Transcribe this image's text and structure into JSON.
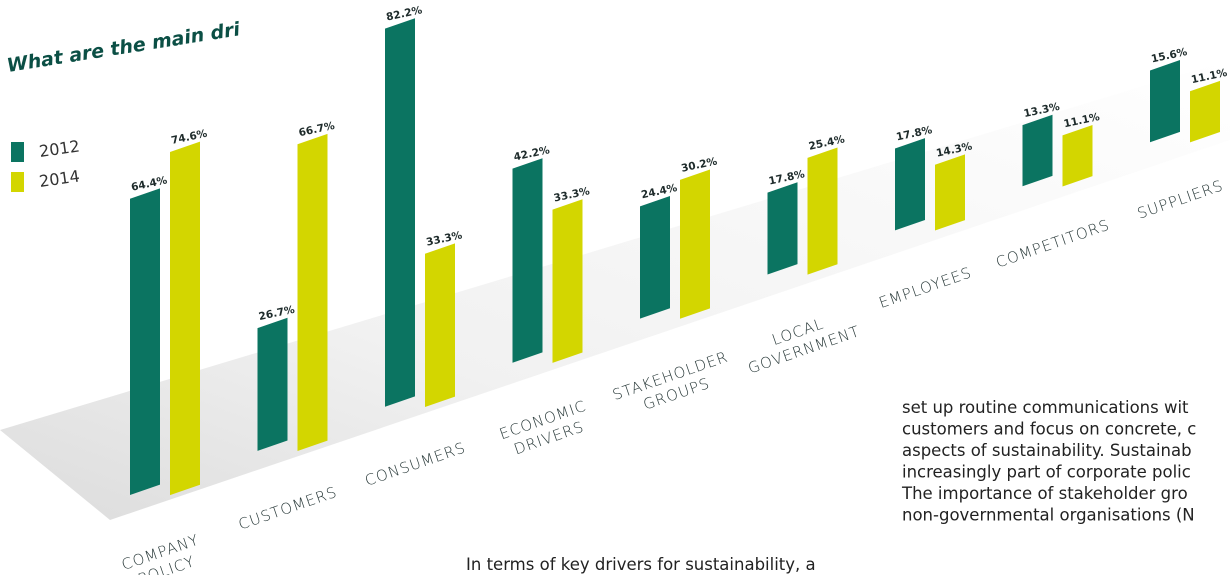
{
  "chart_data": {
    "type": "bar",
    "title": "What are the main dri",
    "categories": [
      [
        "COMPANY",
        "POLICY"
      ],
      [
        "CUSTOMERS"
      ],
      [
        "CONSUMERS"
      ],
      [
        "ECONOMIC",
        "DRIVERS"
      ],
      [
        "STAKEHOLDER",
        "GROUPS"
      ],
      [
        "LOCAL",
        "GOVERNMENT"
      ],
      [
        "EMPLOYEES"
      ],
      [
        "COMPETITORS"
      ],
      [
        "SUPPLIERS"
      ]
    ],
    "series": [
      {
        "name": "2012",
        "color": "#0b7461",
        "values": [
          64.4,
          26.7,
          82.2,
          42.2,
          24.4,
          17.8,
          17.8,
          13.3,
          15.6
        ],
        "value_labels": [
          "64.4%",
          "26.7%",
          "82.2%",
          "42.2%",
          "24.4%",
          "17.8%",
          "17.8%",
          "13.3%",
          "15.6%"
        ]
      },
      {
        "name": "2014",
        "color": "#d3d600",
        "values": [
          74.6,
          66.7,
          33.3,
          33.3,
          30.2,
          25.4,
          14.3,
          11.1,
          11.1
        ],
        "value_labels": [
          "74.6%",
          "66.7%",
          "33.3%",
          "33.3%",
          "30.2%",
          "25.4%",
          "14.3%",
          "11.1%",
          "11.1%"
        ]
      }
    ],
    "annotations": [
      "set up routine communications wit",
      "customers and focus on concrete, c",
      "aspects of sustainability. Sustainab",
      "increasingly part of corporate polic",
      "The importance of stakeholder gro",
      "non-governmental organisations (N",
      "In terms of key drivers for sustainability, a"
    ]
  }
}
